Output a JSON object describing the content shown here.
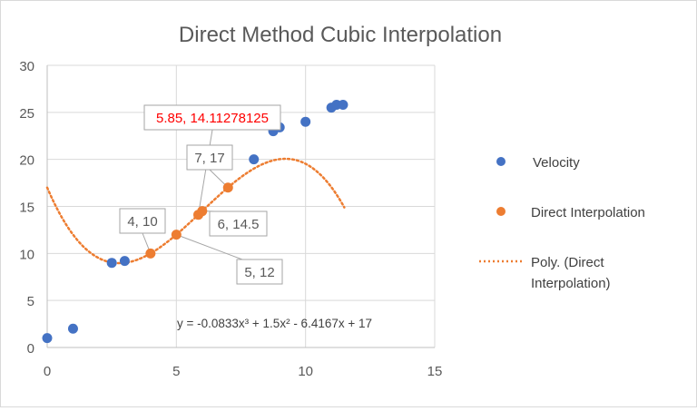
{
  "chart_data": {
    "type": "scatter",
    "title": "Direct Method Cubic Interpolation",
    "xlim": [
      0,
      15
    ],
    "ylim": [
      0,
      30
    ],
    "x_ticks": [
      0,
      5,
      10,
      15
    ],
    "y_ticks": [
      0,
      5,
      10,
      15,
      20,
      25,
      30
    ],
    "grid": true,
    "legend_position": "right",
    "series": [
      {
        "name": "Velocity",
        "color": "#4472c4",
        "marker": "circle",
        "points": [
          {
            "x": 0,
            "y": 1
          },
          {
            "x": 1,
            "y": 2
          },
          {
            "x": 2.5,
            "y": 9
          },
          {
            "x": 3,
            "y": 9.2
          },
          {
            "x": 8,
            "y": 20
          },
          {
            "x": 8.75,
            "y": 23
          },
          {
            "x": 9,
            "y": 23.4
          },
          {
            "x": 10,
            "y": 24
          },
          {
            "x": 11,
            "y": 25.5
          },
          {
            "x": 11.2,
            "y": 25.8
          },
          {
            "x": 11.45,
            "y": 25.8
          }
        ]
      },
      {
        "name": "Direct Interpolation",
        "color": "#ed7d31",
        "marker": "circle",
        "points": [
          {
            "x": 4,
            "y": 10
          },
          {
            "x": 5,
            "y": 12
          },
          {
            "x": 5.85,
            "y": 14.11278125
          },
          {
            "x": 6,
            "y": 14.5
          },
          {
            "x": 7,
            "y": 17
          }
        ]
      }
    ],
    "trendline": {
      "name": "Poly. (Direct Interpolation)",
      "color": "#ed7d31",
      "style": "dotted",
      "coefficients": [
        -0.0833,
        1.5,
        -6.4167,
        17
      ],
      "x_range": [
        0,
        11.5
      ],
      "equation_label": "y = -0.0833x³ + 1.5x² - 6.4167x + 17"
    },
    "annotations": [
      {
        "text": "4, 10",
        "x": 4,
        "y": 10,
        "color": "#595959"
      },
      {
        "text": "5, 12",
        "x": 5,
        "y": 12,
        "color": "#595959"
      },
      {
        "text": "5.85, 14.11278125",
        "x": 5.85,
        "y": 14.11278125,
        "color": "#ff0000"
      },
      {
        "text": "6, 14.5",
        "x": 6,
        "y": 14.5,
        "color": "#595959"
      },
      {
        "text": "7, 17",
        "x": 7,
        "y": 17,
        "color": "#595959"
      }
    ]
  },
  "legend": {
    "velocity_label": "Velocity",
    "direct_label": "Direct Interpolation",
    "poly_label_line1": "Poly. (Direct",
    "poly_label_line2": "Interpolation)"
  }
}
